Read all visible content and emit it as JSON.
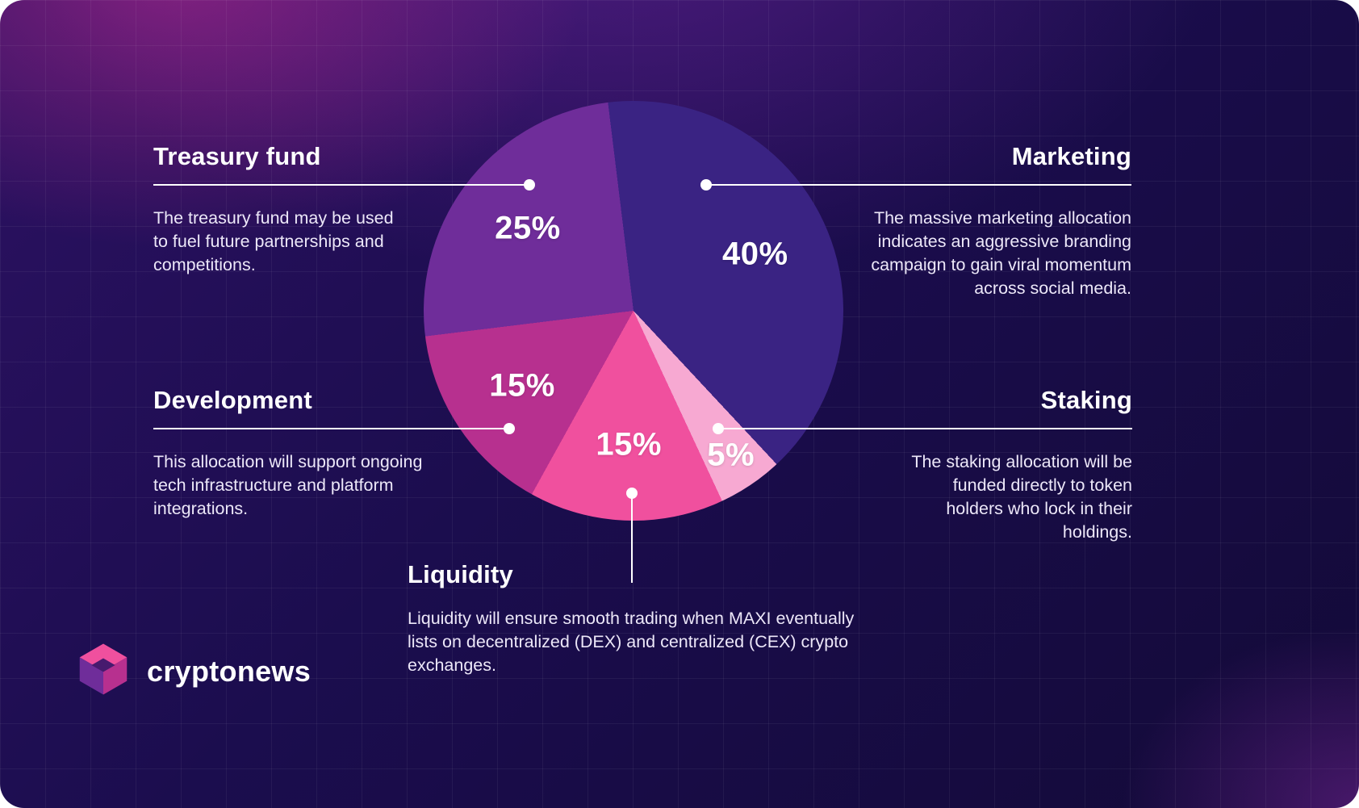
{
  "chart_data": {
    "type": "pie",
    "start_angle_deg": -7,
    "direction": "clockwise",
    "segments": [
      {
        "label": "Marketing",
        "value": 40,
        "color": "#3a2383"
      },
      {
        "label": "Staking",
        "value": 5,
        "color": "#f7a9d2"
      },
      {
        "label": "Liquidity",
        "value": 15,
        "color": "#f0509e"
      },
      {
        "label": "Development",
        "value": 15,
        "color": "#b7308f"
      },
      {
        "label": "Treasury fund",
        "value": 25,
        "color": "#6f2d9a"
      }
    ],
    "legend_position": "callouts-around-pie",
    "grid": false
  },
  "callouts": {
    "treasury": {
      "title": "Treasury fund",
      "percent": "25%",
      "description": "The treasury fund may be used to fuel future partnerships and competitions."
    },
    "marketing": {
      "title": "Marketing",
      "percent": "40%",
      "description": "The massive marketing allocation indicates an aggressive branding campaign to gain viral momentum across social media."
    },
    "development": {
      "title": "Development",
      "percent": "15%",
      "description": "This allocation will support ongoing tech infrastructure and platform integrations."
    },
    "staking": {
      "title": "Staking",
      "percent": "5%",
      "description": "The staking allocation will be funded directly to token holders who lock in their holdings."
    },
    "liquidity": {
      "title": "Liquidity",
      "percent": "15%",
      "description": "Liquidity will ensure smooth trading when MAXI eventually lists on decentralized (DEX) and centralized (CEX) crypto exchanges."
    }
  },
  "brand": {
    "name": "cryptonews",
    "colors": {
      "pink": "#f0509e",
      "magenta": "#b7308f",
      "purple": "#6f2d9a",
      "dark_purple": "#471a6e"
    }
  }
}
